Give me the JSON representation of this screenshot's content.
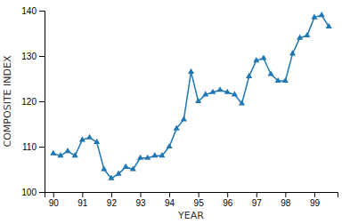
{
  "chart_data": {
    "type": "line",
    "xlabel": "YEAR",
    "ylabel": "COMPOSITE INDEX",
    "x": [
      1990.0,
      1990.25,
      1990.5,
      1990.75,
      1991.0,
      1991.25,
      1991.5,
      1991.75,
      1992.0,
      1992.25,
      1992.5,
      1992.75,
      1993.0,
      1993.25,
      1993.5,
      1993.75,
      1994.0,
      1994.25,
      1994.5,
      1994.75,
      1995.0,
      1995.25,
      1995.5,
      1995.75,
      1996.0,
      1996.25,
      1996.5,
      1996.75,
      1997.0,
      1997.25,
      1997.5,
      1997.75,
      1998.0,
      1998.25,
      1998.5,
      1998.75,
      1999.0,
      1999.25,
      1999.5
    ],
    "values": [
      108.5,
      108.0,
      109.0,
      108.0,
      111.5,
      112.0,
      111.0,
      105.0,
      103.0,
      104.0,
      105.5,
      105.0,
      107.5,
      107.5,
      108.0,
      108.0,
      110.0,
      114.0,
      116.0,
      126.5,
      120.0,
      121.5,
      122.0,
      122.5,
      122.0,
      121.5,
      119.5,
      125.5,
      129.0,
      129.5,
      126.0,
      124.5,
      124.5,
      130.5,
      134.0,
      134.5,
      138.5,
      139.0,
      136.5
    ],
    "marker": "triangle",
    "xlim": [
      1989.7,
      1999.8
    ],
    "ylim": [
      100,
      140
    ],
    "yticks": [
      100,
      110,
      120,
      130,
      140
    ],
    "xticks": [
      {
        "value": 1990,
        "label": "90"
      },
      {
        "value": 1991,
        "label": "91"
      },
      {
        "value": 1992,
        "label": "92"
      },
      {
        "value": 1993,
        "label": "93"
      },
      {
        "value": 1994,
        "label": "94"
      },
      {
        "value": 1995,
        "label": "95"
      },
      {
        "value": 1996,
        "label": "96"
      },
      {
        "value": 1997,
        "label": "97"
      },
      {
        "value": 1998,
        "label": "98"
      },
      {
        "value": 1999,
        "label": "99"
      }
    ]
  }
}
